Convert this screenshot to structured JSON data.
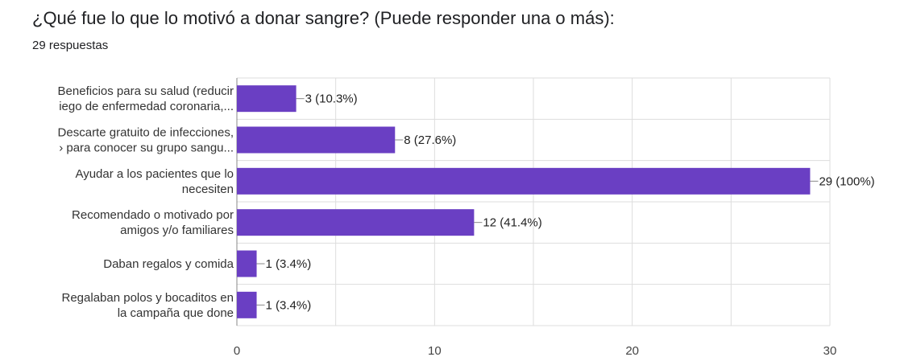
{
  "question": {
    "title": "¿Qué fue lo que lo motivó a donar sangre? (Puede responder una o más):",
    "responses": "29 respuestas"
  },
  "colors": {
    "bar": "#6a3fc3",
    "grid": "#dddddd",
    "axis": "#888888"
  },
  "chart_data": {
    "type": "bar",
    "orientation": "horizontal",
    "title": "¿Qué fue lo que lo motivó a donar sangre? (Puede responder una o más):",
    "categories": [
      [
        "Beneficios para su salud (reducir",
        "iego de enfermedad coronaria,..."
      ],
      [
        "Descarte gratuito de infecciones,",
        "› para conocer su grupo sangu..."
      ],
      [
        "Ayudar a los pacientes que lo",
        "necesiten"
      ],
      [
        "Recomendado o motivado por",
        "amigos y/o familiares"
      ],
      [
        "Daban regalos y comida"
      ],
      [
        "Regalaban polos y bocaditos en",
        "la campaña que done"
      ]
    ],
    "values": [
      3,
      8,
      29,
      12,
      1,
      1
    ],
    "data_labels": [
      "3 (10.3%)",
      "8 (27.6%)",
      "29 (100%)",
      "12 (41.4%)",
      "1 (3.4%)",
      "1 (3.4%)"
    ],
    "xlim": [
      0,
      30
    ],
    "x_ticks": [
      0,
      10,
      20,
      30
    ],
    "grid": true
  }
}
